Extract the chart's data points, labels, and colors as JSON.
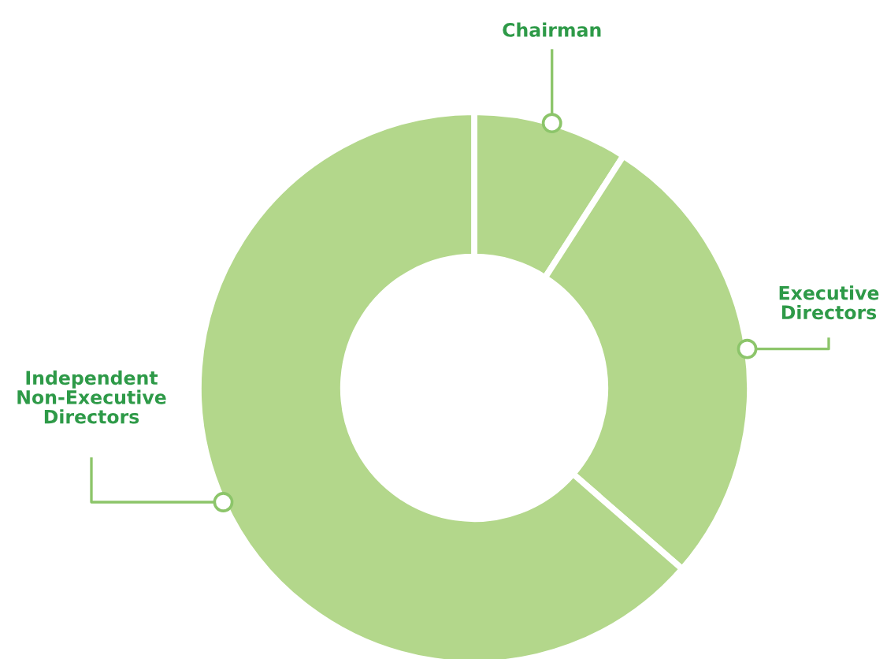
{
  "chart_data": {
    "type": "donut",
    "categories": [
      "Chairman",
      "Executive Directors",
      "Independent Non-Executive Directors"
    ],
    "values": [
      9.1,
      27.3,
      63.6
    ],
    "colors": [
      "#b3d78b",
      "#b3d78b",
      "#b3d78b"
    ],
    "legend": false
  }
}
